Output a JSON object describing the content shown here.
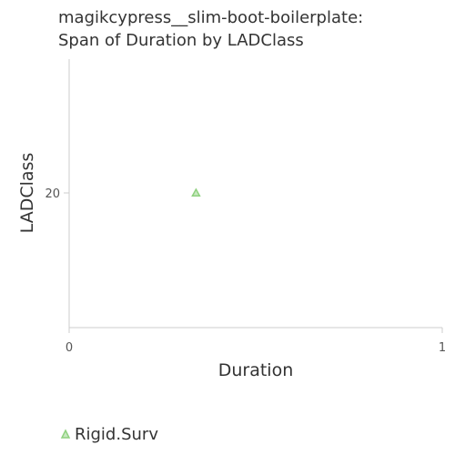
{
  "chart_data": {
    "type": "scatter",
    "title_line1": "magikcypress__slim-boot-boilerplate:",
    "title_line2": "Span of Duration by LADClass",
    "xlabel": "Duration",
    "ylabel": "LADClass",
    "xlim": [
      0,
      1
    ],
    "y_ticks": [
      20
    ],
    "x_tick_labels": [
      "0",
      "1"
    ],
    "y_tick_labels": [
      "20"
    ],
    "grid": false,
    "legend_position": "bottom-left",
    "series": [
      {
        "name": "Rigid.Surv",
        "color": "#8fd17f",
        "marker": "triangle",
        "points": [
          {
            "x": 0.34,
            "y": 20
          }
        ]
      }
    ]
  }
}
